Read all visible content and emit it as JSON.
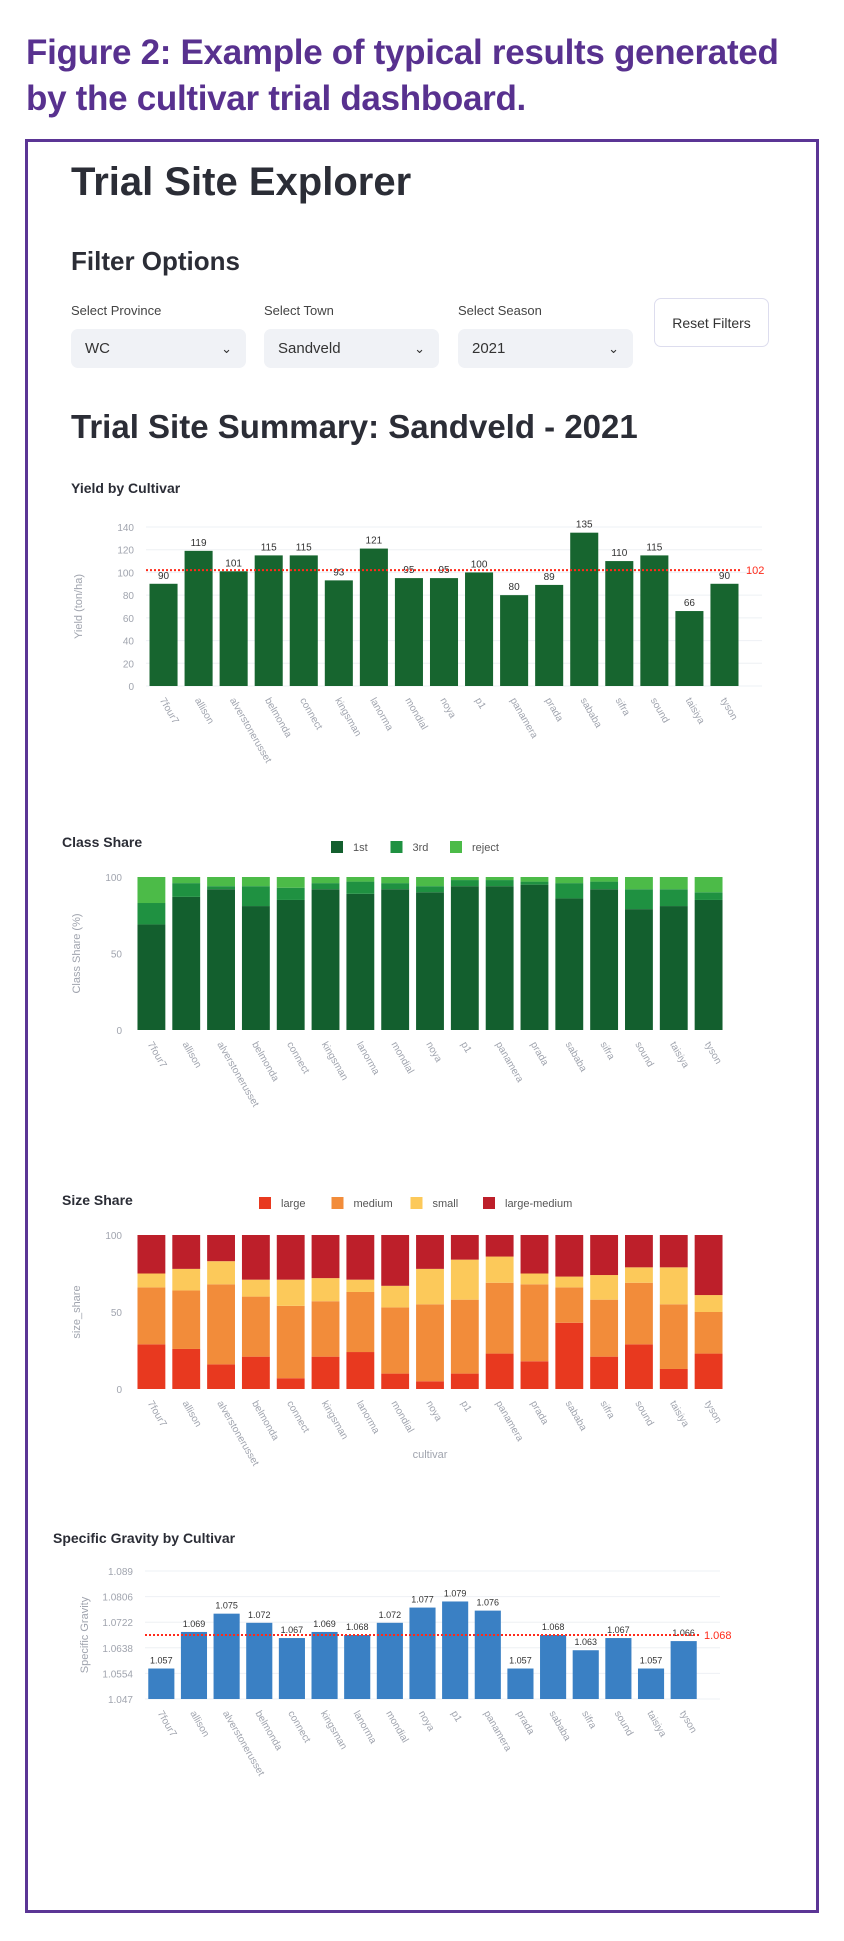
{
  "caption": "Figure 2: Example of typical results generated by the cultivar trial dashboard.",
  "app": {
    "title": "Trial Site Explorer",
    "filter_heading": "Filter Options",
    "filters": [
      {
        "label": "Select Province",
        "value": "WC"
      },
      {
        "label": "Select Town",
        "value": "Sandveld"
      },
      {
        "label": "Select Season",
        "value": "2021"
      }
    ],
    "reset_label": "Reset Filters",
    "summary_title": "Trial Site Summary: Sandveld - 2021"
  },
  "chart_data": [
    {
      "type": "bar",
      "title": "Yield by Cultivar",
      "xlabel": "",
      "ylabel": "Yield (ton/ha)",
      "ylim": [
        0,
        140
      ],
      "yticks": [
        0,
        20,
        40,
        60,
        80,
        100,
        120,
        140
      ],
      "categories": [
        "7four7",
        "allison",
        "alverstonerusset",
        "belmonda",
        "connect",
        "kingsman",
        "lanorma",
        "mondial",
        "noya",
        "p1",
        "panamera",
        "prada",
        "sababa",
        "sifra",
        "sound",
        "taisiya",
        "tyson"
      ],
      "values": [
        90,
        119,
        101,
        115,
        115,
        93,
        121,
        95,
        95,
        100,
        80,
        89,
        135,
        110,
        115,
        66,
        90
      ],
      "data_labels": [
        "90",
        "119",
        "101",
        "115",
        "115",
        "93",
        "121",
        "95",
        "95",
        "100",
        "80",
        "89",
        "135",
        "110",
        "115",
        "66",
        "90"
      ],
      "mean_line": {
        "value": 102,
        "label": "102",
        "color": "#ff2a1a"
      },
      "color": "#17652f",
      "grid": true
    },
    {
      "type": "bar",
      "stacked": true,
      "title": "Class Share",
      "xlabel": "",
      "ylabel": "Class Share (%)",
      "ylim": [
        0,
        100
      ],
      "yticks": [
        0,
        50,
        100
      ],
      "legend_position": "top",
      "categories": [
        "7four7",
        "allison",
        "alverstonerusset",
        "belmonda",
        "connect",
        "kingsman",
        "lanorma",
        "mondial",
        "noya",
        "p1",
        "panamera",
        "prada",
        "sababa",
        "sifra",
        "sound",
        "taisiya",
        "tyson"
      ],
      "series": [
        {
          "name": "1st",
          "color": "#135f2e",
          "values": [
            69,
            87,
            92,
            81,
            85,
            92,
            89,
            92,
            90,
            94,
            94,
            95,
            86,
            92,
            79,
            81,
            85
          ]
        },
        {
          "name": "3rd",
          "color": "#1f9141",
          "values": [
            14,
            9,
            2,
            13,
            8,
            4,
            8,
            4,
            4,
            4,
            4,
            2,
            10,
            5,
            13,
            11,
            5
          ]
        },
        {
          "name": "reject",
          "color": "#4cbb48",
          "values": [
            17,
            4,
            6,
            6,
            7,
            4,
            3,
            4,
            6,
            2,
            2,
            3,
            4,
            3,
            8,
            8,
            10
          ]
        }
      ]
    },
    {
      "type": "bar",
      "stacked": true,
      "title": "Size Share",
      "xlabel": "cultivar",
      "ylabel": "size_share",
      "ylim": [
        0,
        100
      ],
      "yticks": [
        0,
        50,
        100
      ],
      "legend_position": "top",
      "categories": [
        "7four7",
        "allison",
        "alverstonerusset",
        "belmonda",
        "connect",
        "kingsman",
        "lanorma",
        "mondial",
        "noya",
        "p1",
        "panamera",
        "prada",
        "sababa",
        "sifra",
        "sound",
        "taisiya",
        "tyson"
      ],
      "series": [
        {
          "name": "large",
          "color": "#e8391f",
          "values": [
            29,
            26,
            16,
            21,
            7,
            21,
            24,
            10,
            5,
            10,
            23,
            18,
            43,
            21,
            29,
            13,
            23
          ]
        },
        {
          "name": "medium",
          "color": "#f28c3a",
          "values": [
            37,
            38,
            52,
            39,
            47,
            36,
            39,
            43,
            50,
            48,
            46,
            50,
            23,
            37,
            40,
            42,
            27
          ]
        },
        {
          "name": "small",
          "color": "#fcc95a",
          "values": [
            9,
            14,
            15,
            11,
            17,
            15,
            8,
            14,
            23,
            26,
            17,
            7,
            7,
            16,
            10,
            24,
            11
          ]
        },
        {
          "name": "large-medium",
          "color": "#bd1f2a",
          "values": [
            25,
            22,
            17,
            29,
            29,
            28,
            29,
            33,
            22,
            16,
            14,
            25,
            27,
            26,
            21,
            21,
            39
          ]
        }
      ]
    },
    {
      "type": "bar",
      "title": "Specific Gravity by Cultivar",
      "xlabel": "",
      "ylabel": "Specific Gravity",
      "ylim": [
        1.047,
        1.089
      ],
      "yticks": [
        1.047,
        1.0554,
        1.0638,
        1.0722,
        1.0806,
        1.089
      ],
      "categories": [
        "7four7",
        "allison",
        "alverstonerusset",
        "belmonda",
        "connect",
        "kingsman",
        "lanorma",
        "mondial",
        "noya",
        "p1",
        "panamera",
        "prada",
        "sababa",
        "sifra",
        "sound",
        "taisiya",
        "tyson"
      ],
      "values": [
        1.057,
        1.069,
        1.075,
        1.072,
        1.067,
        1.069,
        1.068,
        1.072,
        1.077,
        1.079,
        1.076,
        1.057,
        1.068,
        1.063,
        1.067,
        1.057,
        1.066
      ],
      "data_labels": [
        "1.057",
        "1.069",
        "1.075",
        "1.072",
        "1.067",
        "1.069",
        "1.068",
        "1.072",
        "1.077",
        "1.079",
        "1.076",
        "1.057",
        "1.068",
        "1.063",
        "1.067",
        "1.057",
        "1.066"
      ],
      "mean_line": {
        "value": 1.068,
        "label": "1.068",
        "color": "#ff2a1a"
      },
      "color": "#3a80c4",
      "grid": true
    }
  ]
}
